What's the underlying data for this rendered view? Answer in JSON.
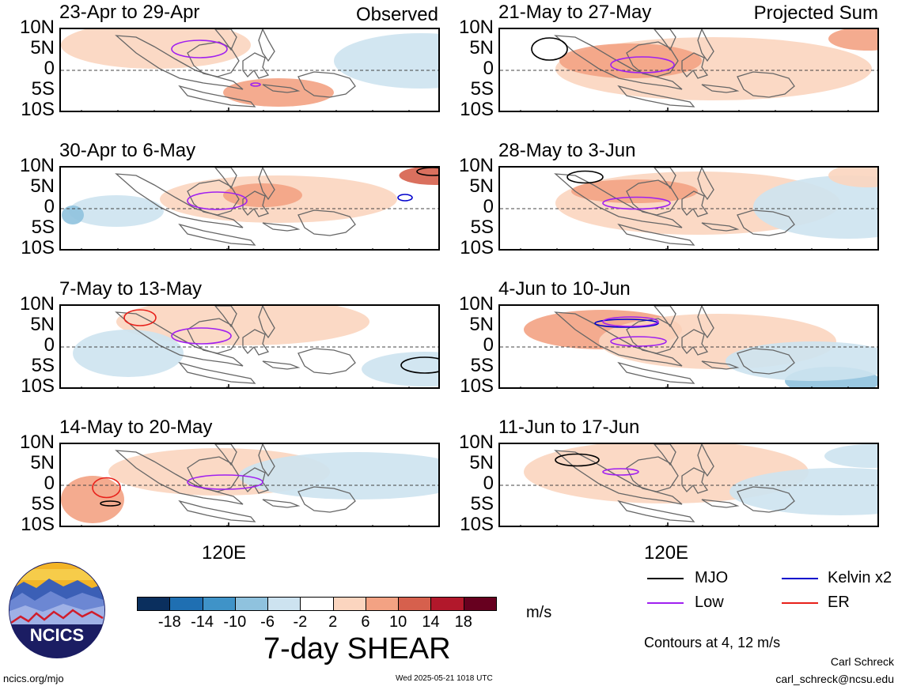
{
  "columns": {
    "left_tag": "Observed",
    "right_tag": "Projected Sum"
  },
  "panels_left": [
    {
      "title": "23-Apr to 29-Apr"
    },
    {
      "title": "30-Apr to 6-May"
    },
    {
      "title": "7-May to 13-May"
    },
    {
      "title": "14-May to 20-May"
    }
  ],
  "panels_right": [
    {
      "title": "21-May to 27-May"
    },
    {
      "title": "28-May to 3-Jun"
    },
    {
      "title": "4-Jun to 10-Jun"
    },
    {
      "title": "11-Jun to 17-Jun"
    }
  ],
  "lat_labels": [
    "10N",
    "5N",
    "0",
    "5S",
    "10S"
  ],
  "lon_label": "120E",
  "colorbar": {
    "levels": [
      "-18",
      "-14",
      "-10",
      "-6",
      "-2",
      "2",
      "6",
      "10",
      "14",
      "18"
    ],
    "colors": [
      "#0a2f5e",
      "#1f6fb2",
      "#3f93c8",
      "#8fc2de",
      "#cde3f0",
      "#ffffff",
      "#fbd5bf",
      "#f3a283",
      "#d6604d",
      "#b2182b",
      "#67001f"
    ],
    "units": "m/s",
    "title": "7-day SHEAR"
  },
  "legend": {
    "items": [
      {
        "label": "MJO",
        "color": "#000000"
      },
      {
        "label": "Kelvin x2",
        "color": "#0000cc"
      },
      {
        "label": "Low",
        "color": "#a020f0"
      },
      {
        "label": "ER",
        "color": "#e8201a"
      }
    ],
    "contour_note": "Contours at 4, 12 m/s"
  },
  "logo": {
    "text": "NCICS"
  },
  "footer": {
    "site": "ncics.org/mjo",
    "timestamp": "Wed 2025-05-21 1018 UTC",
    "author": "Carl Schreck",
    "email": "carl_schreck@ncsu.edu"
  }
}
